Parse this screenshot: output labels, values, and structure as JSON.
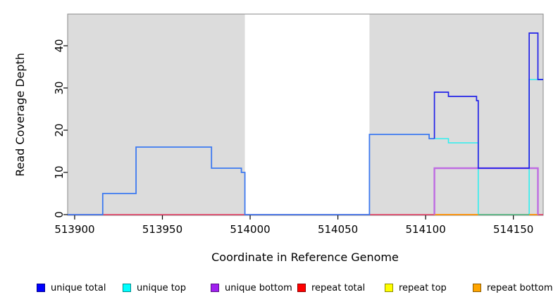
{
  "chart_data": {
    "type": "line",
    "title": "",
    "xlabel": "Coordinate in Reference Genome",
    "ylabel": "Read Coverage Depth",
    "xlim": [
      513896,
      514167
    ],
    "ylim": [
      0,
      47.5
    ],
    "x_ticks": [
      "513900",
      "513950",
      "514000",
      "514050",
      "514100",
      "514150"
    ],
    "y_ticks": [
      "0",
      "10",
      "20",
      "30",
      "40"
    ],
    "grid": false,
    "shade_color": "#dcdcdc",
    "shaded_regions": [
      [
        513896,
        513997
      ],
      [
        514068,
        514167
      ]
    ],
    "series": [
      {
        "name": "unique total",
        "color": "#0000ff",
        "steps": [
          [
            513896,
            0
          ],
          [
            513916,
            5
          ],
          [
            513935,
            16
          ],
          [
            513978,
            11
          ],
          [
            513995,
            10
          ],
          [
            513997,
            0
          ],
          [
            514068,
            19
          ],
          [
            514102,
            18
          ],
          [
            514105,
            29
          ],
          [
            514113,
            28
          ],
          [
            514129,
            27
          ],
          [
            514130,
            11
          ],
          [
            514159,
            43
          ],
          [
            514164,
            32
          ],
          [
            514167,
            32
          ]
        ]
      },
      {
        "name": "unique top",
        "color": "#00ffff",
        "steps": [
          [
            513896,
            0
          ],
          [
            514068,
            19
          ],
          [
            514102,
            18
          ],
          [
            514113,
            17
          ],
          [
            514130,
            0
          ],
          [
            514159,
            32
          ],
          [
            514167,
            32
          ]
        ]
      },
      {
        "name": "unique bottom",
        "color": "#a020f0",
        "steps": [
          [
            513896,
            0
          ],
          [
            514105,
            11
          ],
          [
            514164,
            0
          ],
          [
            514167,
            0
          ]
        ]
      },
      {
        "name": "repeat total",
        "color": "#ff0000",
        "steps": [
          [
            513896,
            0
          ],
          [
            514167,
            0
          ]
        ]
      },
      {
        "name": "repeat top",
        "color": "#ffff00",
        "steps": [
          [
            513896,
            0
          ],
          [
            514167,
            0
          ]
        ]
      },
      {
        "name": "repeat bottom",
        "color": "#ffa500",
        "steps": [
          [
            513896,
            0
          ],
          [
            514167,
            0
          ]
        ]
      }
    ],
    "render_segments": [
      {
        "name": "repeat-total-baseline",
        "color": "#e8365f",
        "width": 1.6,
        "verts": [
          [
            513896,
            0
          ],
          [
            514167,
            0
          ]
        ]
      },
      {
        "name": "unique-top-line",
        "color": "#2eefef",
        "width": 1.6,
        "verts": [
          [
            514102,
            18
          ],
          [
            514113,
            18
          ],
          [
            514113,
            17
          ],
          [
            514130,
            17
          ],
          [
            514130,
            0
          ],
          [
            514159,
            0
          ],
          [
            514159,
            32
          ],
          [
            514167,
            32
          ]
        ]
      },
      {
        "name": "repeat-overlap-green",
        "color": "#5bb878",
        "width": 1.6,
        "verts": [
          [
            514130,
            0
          ],
          [
            514159,
            0
          ]
        ]
      },
      {
        "name": "repeat-bottom-line-a",
        "color": "#ff9900",
        "width": 1.7,
        "verts": [
          [
            514105,
            0
          ],
          [
            514130,
            0
          ]
        ]
      },
      {
        "name": "repeat-bottom-line-b",
        "color": "#ff9900",
        "width": 1.7,
        "verts": [
          [
            514159,
            0
          ],
          [
            514164,
            0
          ]
        ]
      },
      {
        "name": "unique-bottom-line",
        "color": "#be6ce2",
        "width": 2.4,
        "verts": [
          [
            514105,
            0
          ],
          [
            514105,
            11
          ],
          [
            514164,
            11
          ],
          [
            514164,
            0
          ]
        ]
      },
      {
        "name": "unique-total-bright",
        "color": "#3d79f0",
        "width": 1.8,
        "verts": [
          [
            513896,
            0
          ],
          [
            513916,
            0
          ],
          [
            513916,
            5
          ],
          [
            513935,
            5
          ],
          [
            513935,
            16
          ],
          [
            513978,
            16
          ],
          [
            513978,
            11
          ],
          [
            513995,
            11
          ],
          [
            513995,
            10
          ],
          [
            513997,
            10
          ],
          [
            513997,
            0
          ],
          [
            514068,
            0
          ],
          [
            514068,
            19
          ],
          [
            514102,
            19
          ],
          [
            514102,
            18
          ],
          [
            514105,
            18
          ]
        ]
      },
      {
        "name": "unique-total-dark",
        "color": "#2121e8",
        "width": 1.7,
        "verts": [
          [
            514105,
            18
          ],
          [
            514105,
            29
          ],
          [
            514113,
            29
          ],
          [
            514113,
            28
          ],
          [
            514129,
            28
          ],
          [
            514129,
            27
          ],
          [
            514130,
            27
          ],
          [
            514130,
            11
          ],
          [
            514159,
            11
          ],
          [
            514159,
            43
          ],
          [
            514164,
            43
          ],
          [
            514164,
            32
          ],
          [
            514167,
            32
          ]
        ]
      }
    ]
  },
  "legend": {
    "items": [
      {
        "label": "unique total",
        "fill": "#0000ff"
      },
      {
        "label": "unique top",
        "fill": "#00ffff"
      },
      {
        "label": "unique bottom",
        "fill": "#a020f0"
      },
      {
        "label": "repeat total",
        "fill": "#ff0000"
      },
      {
        "label": "repeat top",
        "fill": "#ffff00"
      },
      {
        "label": "repeat bottom",
        "fill": "#ffa500"
      }
    ]
  }
}
